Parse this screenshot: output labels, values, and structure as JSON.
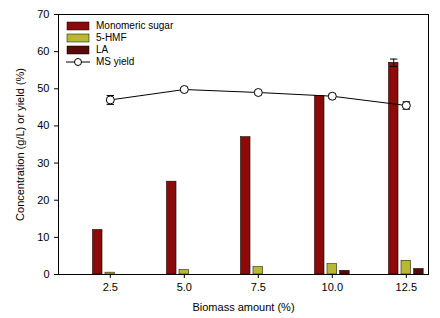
{
  "chart_data": {
    "type": "bar",
    "categories": [
      "2.5",
      "5.0",
      "7.5",
      "10.0",
      "12.5"
    ],
    "xlabel": "Biomass amount (%)",
    "ylabel": "Concentration (g/L) or yield (%)",
    "ylim": [
      0,
      70
    ],
    "yticks": [
      0,
      10,
      20,
      30,
      40,
      50,
      60,
      70
    ],
    "grid": false,
    "legend": "upper left",
    "series": [
      {
        "name": "Monomeric sugar",
        "type": "bar",
        "color": "#8b0a0a",
        "values": [
          12,
          25,
          37,
          48,
          57
        ],
        "errors": [
          0,
          0,
          0,
          0,
          1
        ]
      },
      {
        "name": "5-HMF",
        "type": "bar",
        "color": "#b8b832",
        "values": [
          0.5,
          1.2,
          2.0,
          2.8,
          3.7
        ]
      },
      {
        "name": "LA",
        "type": "bar",
        "color": "#5a0808",
        "values": [
          0,
          0,
          0,
          1.0,
          1.5
        ]
      },
      {
        "name": "MS yield",
        "type": "line",
        "color": "#000000",
        "marker": "circle",
        "values": [
          47,
          49.8,
          49,
          48,
          45.5
        ],
        "errors": [
          1.2,
          0.5,
          0.5,
          0.6,
          1.0
        ]
      }
    ]
  }
}
